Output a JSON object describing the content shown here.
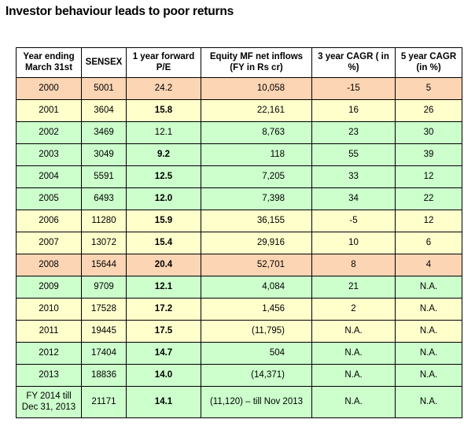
{
  "title": "Investor behaviour leads to poor returns",
  "colors": {
    "orange": "#fcd5b4",
    "yellow": "#ffffcc",
    "green": "#ccffcc"
  },
  "table": {
    "headers": [
      "Year ending March 31st",
      "SENSEX",
      "1 year forward P/E",
      "Equity MF net inflows (FY in Rs cr)",
      "3 year CAGR ( in %)",
      "5 year CAGR (in %)"
    ],
    "rows": [
      {
        "year": "2000",
        "sensex": "5001",
        "pe": "24.2",
        "inflows": "10,058",
        "cagr3": "-15",
        "cagr5": "5",
        "color": "orange",
        "pe_bold": false
      },
      {
        "year": "2001",
        "sensex": "3604",
        "pe": "15.8",
        "inflows": "22,161",
        "cagr3": "16",
        "cagr5": "26",
        "color": "yellow",
        "pe_bold": true
      },
      {
        "year": "2002",
        "sensex": "3469",
        "pe": "12.1",
        "inflows": "8,763",
        "cagr3": "23",
        "cagr5": "30",
        "color": "green",
        "pe_bold": false
      },
      {
        "year": "2003",
        "sensex": "3049",
        "pe": "9.2",
        "inflows": "118",
        "cagr3": "55",
        "cagr5": "39",
        "color": "green",
        "pe_bold": true
      },
      {
        "year": "2004",
        "sensex": "5591",
        "pe": "12.5",
        "inflows": "7,205",
        "cagr3": "33",
        "cagr5": "12",
        "color": "green",
        "pe_bold": true
      },
      {
        "year": "2005",
        "sensex": "6493",
        "pe": "12.0",
        "inflows": "7,398",
        "cagr3": "34",
        "cagr5": "22",
        "color": "green",
        "pe_bold": true
      },
      {
        "year": "2006",
        "sensex": "11280",
        "pe": "15.9",
        "inflows": "36,155",
        "cagr3": "-5",
        "cagr5": "12",
        "color": "yellow",
        "pe_bold": true
      },
      {
        "year": "2007",
        "sensex": "13072",
        "pe": "15.4",
        "inflows": "29,916",
        "cagr3": "10",
        "cagr5": "6",
        "color": "yellow",
        "pe_bold": true
      },
      {
        "year": "2008",
        "sensex": "15644",
        "pe": "20.4",
        "inflows": "52,701",
        "cagr3": "8",
        "cagr5": "4",
        "color": "orange",
        "pe_bold": true
      },
      {
        "year": "2009",
        "sensex": "9709",
        "pe": "12.1",
        "inflows": "4,084",
        "cagr3": "21",
        "cagr5": "N.A.",
        "color": "green",
        "pe_bold": true
      },
      {
        "year": "2010",
        "sensex": "17528",
        "pe": "17.2",
        "inflows": "1,456",
        "cagr3": "2",
        "cagr5": "N.A.",
        "color": "yellow",
        "pe_bold": true
      },
      {
        "year": "2011",
        "sensex": "19445",
        "pe": "17.5",
        "inflows": "(11,795)",
        "cagr3": "N.A.",
        "cagr5": "N.A.",
        "color": "yellow",
        "pe_bold": true
      },
      {
        "year": "2012",
        "sensex": "17404",
        "pe": "14.7",
        "inflows": "504",
        "cagr3": "N.A.",
        "cagr5": "N.A.",
        "color": "green",
        "pe_bold": true
      },
      {
        "year": "2013",
        "sensex": "18836",
        "pe": "14.0",
        "inflows": "(14,371)",
        "cagr3": "N.A.",
        "cagr5": "N.A.",
        "color": "green",
        "pe_bold": true
      },
      {
        "year": "FY 2014 till Dec 31, 2013",
        "sensex": "21171",
        "pe": "14.1",
        "inflows": "(11,120) – till Nov 2013",
        "cagr3": "N.A.",
        "cagr5": "N.A.",
        "color": "green",
        "pe_bold": true
      }
    ]
  }
}
